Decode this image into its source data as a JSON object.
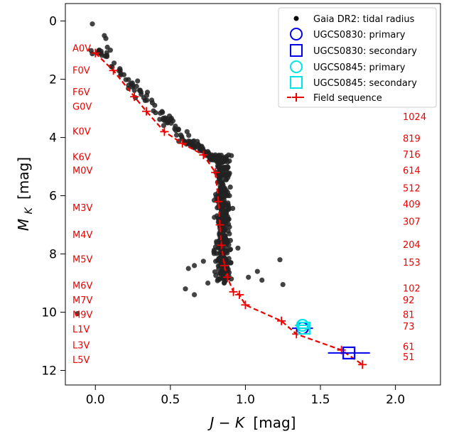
{
  "chart_data": {
    "type": "scatter",
    "xlabel_main": "J − K",
    "xlabel_unit": "[mag]",
    "ylabel_main": "M",
    "ylabel_sub": "K",
    "ylabel_unit": "[mag]",
    "xlim": [
      -0.2,
      2.3
    ],
    "ylim": [
      12.5,
      -0.6
    ],
    "y_inverted": true,
    "xticks": [
      0.0,
      0.5,
      1.0,
      1.5,
      2.0
    ],
    "xtick_labels": [
      "0.0",
      "0.5",
      "1.0",
      "1.5",
      "2.0"
    ],
    "yticks": [
      0,
      2,
      4,
      6,
      8,
      10,
      12
    ],
    "ytick_labels": [
      "0",
      "2",
      "4",
      "6",
      "8",
      "10",
      "12"
    ],
    "grid": false,
    "legend_placement": "top-right",
    "legend": [
      {
        "label": "Gaia DR2: tidal radius",
        "marker": "dot",
        "color": "#000000"
      },
      {
        "label": "UGCS0830: primary",
        "marker": "circle",
        "color": "#0000ee"
      },
      {
        "label": "UGCS0830: secondary",
        "marker": "square",
        "color": "#0000ee"
      },
      {
        "label": "UGCS0845: primary",
        "marker": "circle",
        "color": "#00e5e5"
      },
      {
        "label": "UGCS0845: secondary",
        "marker": "square",
        "color": "#00e5e5"
      },
      {
        "label": "Field sequence",
        "marker": "red-plus-dashed",
        "color": "#ee0000"
      }
    ],
    "field_sequence": {
      "color": "#ee0000",
      "x": [
        0.0,
        0.12,
        0.26,
        0.34,
        0.46,
        0.58,
        0.72,
        0.8,
        0.82,
        0.83,
        0.84,
        0.86,
        0.88,
        0.92,
        0.96,
        1.0,
        1.24,
        1.34,
        1.64,
        1.78
      ],
      "y": [
        1.1,
        1.7,
        2.6,
        3.1,
        3.8,
        4.2,
        4.6,
        5.2,
        6.2,
        7.0,
        7.7,
        8.4,
        8.8,
        9.3,
        9.4,
        9.75,
        10.3,
        10.75,
        11.3,
        11.8
      ]
    },
    "gaia_scatter_color": "#222222",
    "ugcs0830": {
      "color": "#0000ee",
      "primary": {
        "x": 1.38,
        "y": 10.55,
        "xerr": 0.07
      },
      "secondary": {
        "x": 1.69,
        "y": 11.4,
        "xerr": 0.14
      }
    },
    "ugcs0845": {
      "color": "#00e5e5",
      "primary": {
        "x": 1.38,
        "y": 10.45,
        "xerr": 0.05
      },
      "secondary": {
        "x": 1.39,
        "y": 10.55,
        "xerr": 0.04
      }
    },
    "spectral_types": [
      {
        "label": "A0V",
        "y": 0.95
      },
      {
        "label": "F0V",
        "y": 1.7
      },
      {
        "label": "F6V",
        "y": 2.45
      },
      {
        "label": "G0V",
        "y": 2.95
      },
      {
        "label": "K0V",
        "y": 3.8
      },
      {
        "label": "K6V",
        "y": 4.68
      },
      {
        "label": "M0V",
        "y": 5.15
      },
      {
        "label": "M3V",
        "y": 6.42
      },
      {
        "label": "M4V",
        "y": 7.35
      },
      {
        "label": "M5V",
        "y": 8.2
      },
      {
        "label": "M6V",
        "y": 9.1
      },
      {
        "label": "M7V",
        "y": 9.6
      },
      {
        "label": "M9V",
        "y": 10.1
      },
      {
        "label": "L1V",
        "y": 10.6
      },
      {
        "label": "L3V",
        "y": 11.15
      },
      {
        "label": "L5V",
        "y": 11.65
      }
    ],
    "right_labels": [
      {
        "label": "1024",
        "y": 3.3
      },
      {
        "label": "819",
        "y": 4.05
      },
      {
        "label": "716",
        "y": 4.6
      },
      {
        "label": "614",
        "y": 5.15
      },
      {
        "label": "512",
        "y": 5.75
      },
      {
        "label": "409",
        "y": 6.3
      },
      {
        "label": "307",
        "y": 6.9
      },
      {
        "label": "204",
        "y": 7.7
      },
      {
        "label": "153",
        "y": 8.3
      },
      {
        "label": "102",
        "y": 9.2
      },
      {
        "label": "92",
        "y": 9.6
      },
      {
        "label": "81",
        "y": 10.1
      },
      {
        "label": "73",
        "y": 10.5
      },
      {
        "label": "61",
        "y": 11.2
      },
      {
        "label": "51",
        "y": 11.55
      }
    ]
  }
}
